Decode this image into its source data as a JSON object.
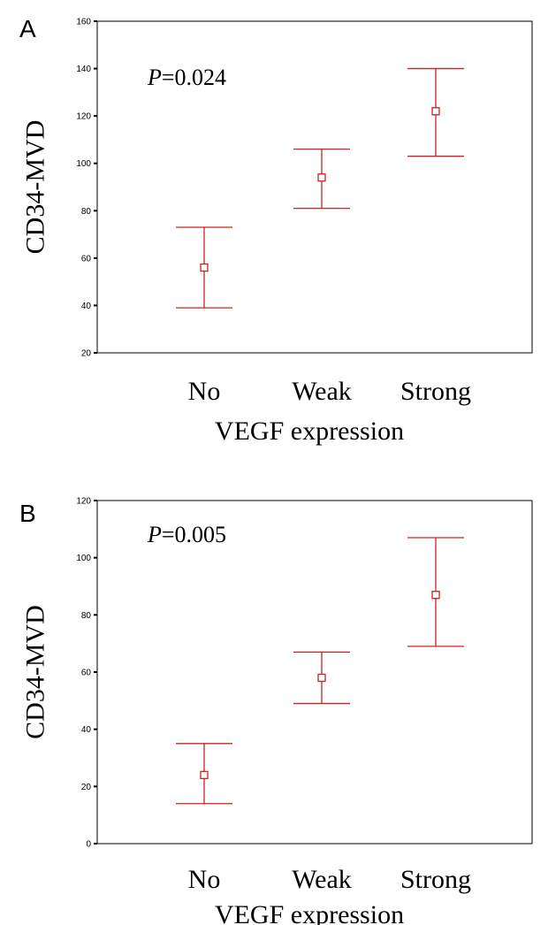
{
  "chart_data": [
    {
      "type": "errorbar",
      "panel_label": "A",
      "annotation": {
        "italic": "P",
        "value": "=0.024"
      },
      "xlabel": "VEGF expression",
      "ylabel": "CD34-MVD",
      "categories": [
        "No",
        "Weak",
        "Strong"
      ],
      "ylim": [
        20,
        160
      ],
      "yticks": [
        20,
        40,
        60,
        80,
        100,
        120,
        140,
        160
      ],
      "series": [
        {
          "mean": [
            56,
            94,
            122
          ],
          "lower": [
            39,
            81,
            103
          ],
          "upper": [
            73,
            106,
            140
          ]
        }
      ],
      "grid": false,
      "color": "#cc2222"
    },
    {
      "type": "errorbar",
      "panel_label": "B",
      "annotation": {
        "italic": "P",
        "value": "=0.005"
      },
      "xlabel": "VEGF expression",
      "ylabel": "CD34-MVD",
      "categories": [
        "No",
        "Weak",
        "Strong"
      ],
      "ylim": [
        0,
        120
      ],
      "yticks": [
        0,
        20,
        40,
        60,
        80,
        100,
        120
      ],
      "series": [
        {
          "mean": [
            24,
            58,
            87
          ],
          "lower": [
            14,
            49,
            69
          ],
          "upper": [
            35,
            67,
            107
          ]
        }
      ],
      "grid": false,
      "color": "#cc2222"
    }
  ]
}
